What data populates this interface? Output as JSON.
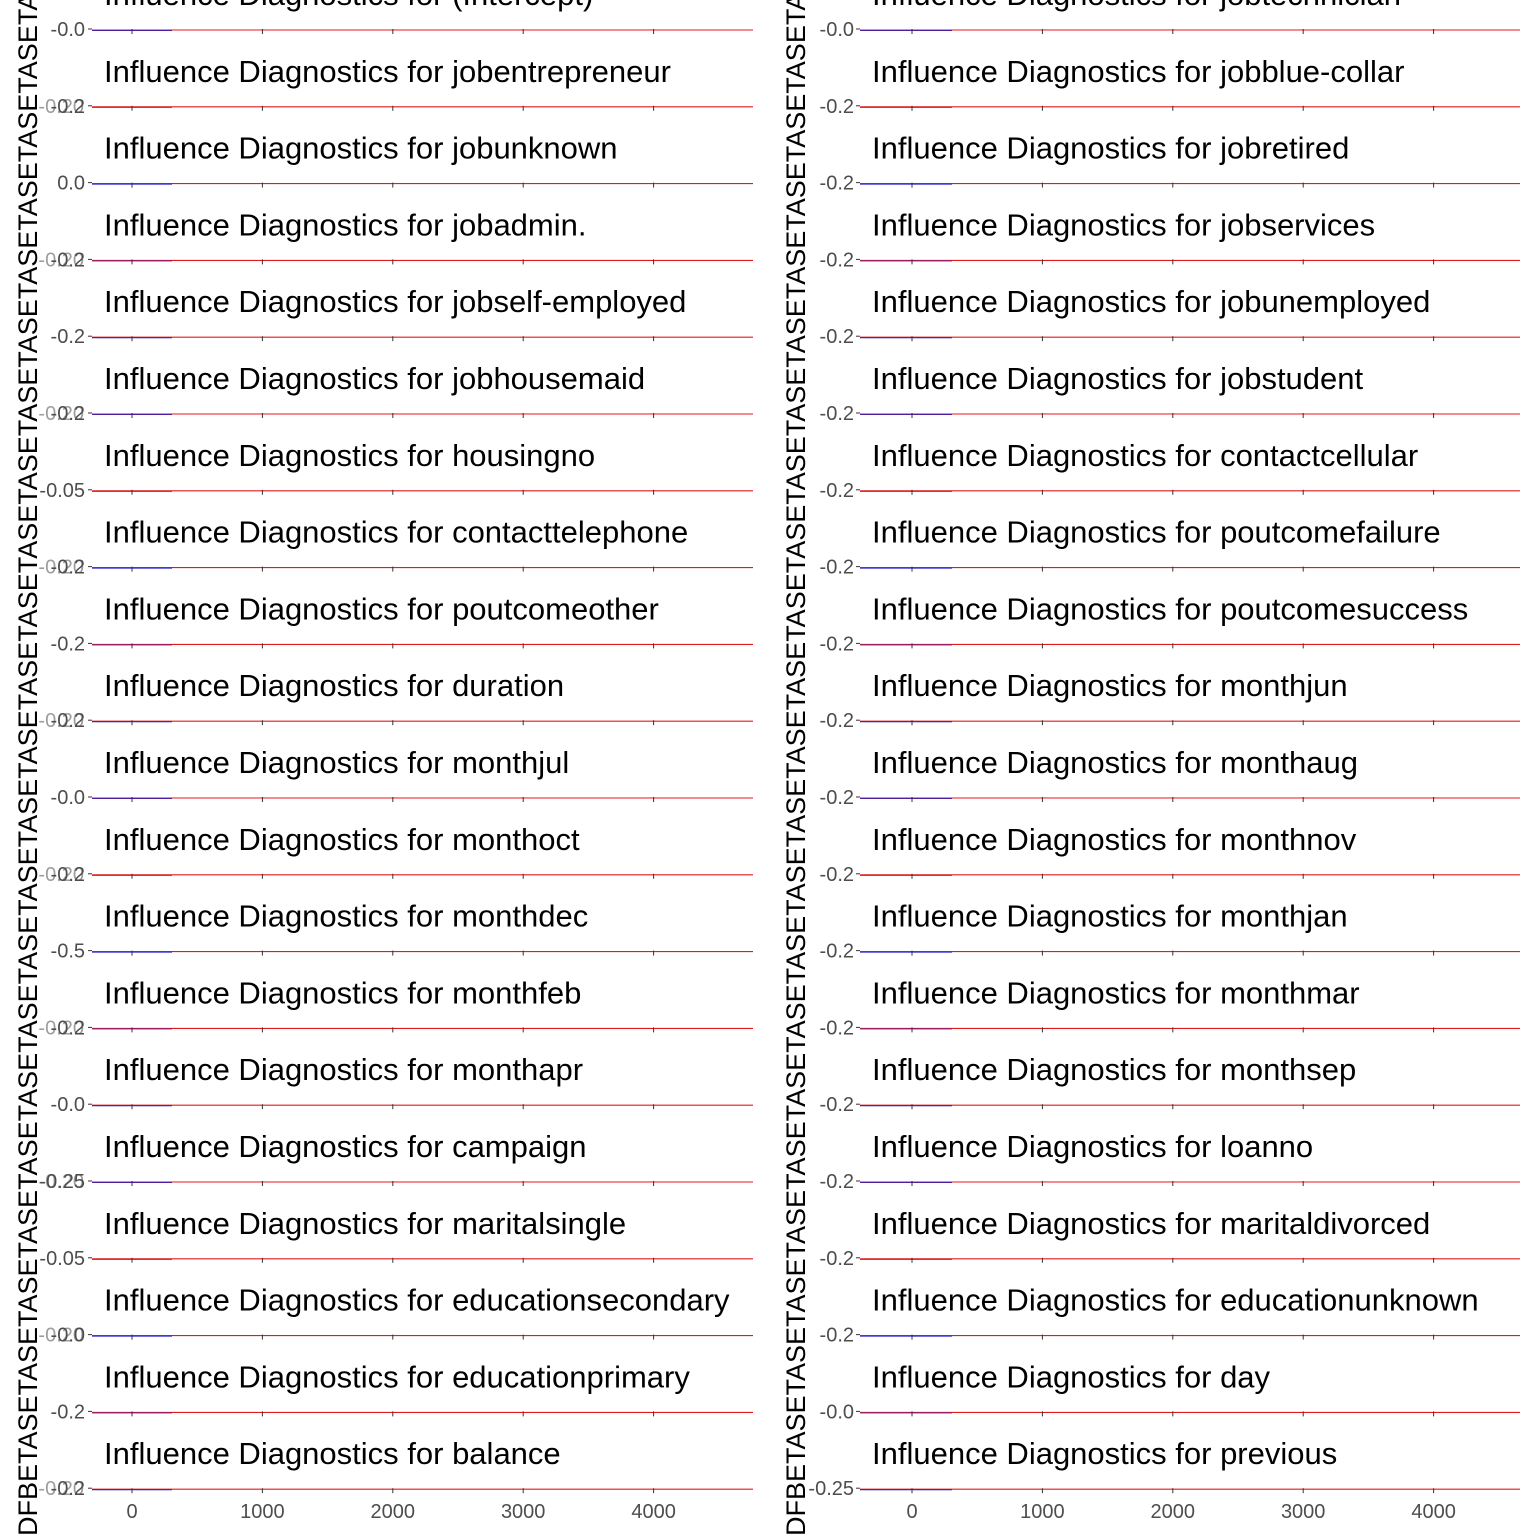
{
  "y_axis_label_text": "DFBETASETASETASETASETASETASETASETASETASETASETASETASETASETASETASETASETASETASETASETASETASETASETASETASETASETASETASETASETASETASETASETASETASETASETASETASETASETASETASETASETASETASETASETASETASETASETASETASETASETASETASETASETASETASETASETASETASETASETAS",
  "colors": {
    "threshold_line": "#e41a1c",
    "dfbeta_line": "#1f1fcc",
    "axis": "#333333",
    "tick_text": "#4d4d4d"
  },
  "chart_data": {
    "type": "line",
    "x_ticks": [
      "0",
      "1000",
      "2000",
      "3000",
      "4000"
    ],
    "xlim": [
      0,
      4700
    ],
    "panels": [
      {
        "column": "left",
        "y_tick_overlay": "-0.20",
        "rows": [
          {
            "title": "Influence Diagnostics for (Intercept)",
            "y_tick": "-0.0"
          },
          {
            "title": "Influence Diagnostics for jobentrepreneur",
            "y_tick": "-0.2"
          },
          {
            "title": "Influence Diagnostics for jobunknown",
            "y_tick": "0.0"
          },
          {
            "title": "Influence Diagnostics for jobadmin.",
            "y_tick": "-0.2"
          },
          {
            "title": "Influence Diagnostics for jobself-employed",
            "y_tick": "-0.2"
          },
          {
            "title": "Influence Diagnostics for jobhousemaid",
            "y_tick": "-0.2"
          },
          {
            "title": "Influence Diagnostics for housingno",
            "y_tick": "-0.05"
          },
          {
            "title": "Influence Diagnostics for contacttelephone",
            "y_tick": "-0.2"
          },
          {
            "title": "Influence Diagnostics for poutcomeother",
            "y_tick": "-0.2"
          },
          {
            "title": "Influence Diagnostics for duration",
            "y_tick": "-0.2"
          },
          {
            "title": "Influence Diagnostics for monthjul",
            "y_tick": "-0.0"
          },
          {
            "title": "Influence Diagnostics for monthoct",
            "y_tick": "-0.2"
          },
          {
            "title": "Influence Diagnostics for monthdec",
            "y_tick": "-0.5"
          },
          {
            "title": "Influence Diagnostics for monthfeb",
            "y_tick": "-0.2"
          },
          {
            "title": "Influence Diagnostics for monthapr",
            "y_tick": "-0.0"
          },
          {
            "title": "Influence Diagnostics for campaign",
            "y_tick": "-0.25"
          },
          {
            "title": "Influence Diagnostics for maritalsingle",
            "y_tick": "-0.05"
          },
          {
            "title": "Influence Diagnostics for educationsecondary",
            "y_tick": "-0.0"
          },
          {
            "title": "Influence Diagnostics for educationprimary",
            "y_tick": "-0.2"
          },
          {
            "title": "Influence Diagnostics for balance",
            "y_tick": "-0.2"
          }
        ]
      },
      {
        "column": "right",
        "rows": [
          {
            "title": "Influence Diagnostics for jobtechnician",
            "y_tick": "-0.0"
          },
          {
            "title": "Influence Diagnostics for jobblue-collar",
            "y_tick": "-0.2"
          },
          {
            "title": "Influence Diagnostics for jobretired",
            "y_tick": "-0.2"
          },
          {
            "title": "Influence Diagnostics for jobservices",
            "y_tick": "-0.2"
          },
          {
            "title": "Influence Diagnostics for jobunemployed",
            "y_tick": "-0.2"
          },
          {
            "title": "Influence Diagnostics for jobstudent",
            "y_tick": "-0.2"
          },
          {
            "title": "Influence Diagnostics for contactcellular",
            "y_tick": "-0.2"
          },
          {
            "title": "Influence Diagnostics for poutcomefailure",
            "y_tick": "-0.2"
          },
          {
            "title": "Influence Diagnostics for poutcomesuccess",
            "y_tick": "-0.2"
          },
          {
            "title": "Influence Diagnostics for monthjun",
            "y_tick": "-0.2"
          },
          {
            "title": "Influence Diagnostics for monthaug",
            "y_tick": "-0.2"
          },
          {
            "title": "Influence Diagnostics for monthnov",
            "y_tick": "-0.2"
          },
          {
            "title": "Influence Diagnostics for monthjan",
            "y_tick": "-0.2"
          },
          {
            "title": "Influence Diagnostics for monthmar",
            "y_tick": "-0.2"
          },
          {
            "title": "Influence Diagnostics for monthsep",
            "y_tick": "-0.2"
          },
          {
            "title": "Influence Diagnostics for loanno",
            "y_tick": "-0.2"
          },
          {
            "title": "Influence Diagnostics for maritaldivorced",
            "y_tick": "-0.2"
          },
          {
            "title": "Influence Diagnostics for educationunknown",
            "y_tick": "-0.2"
          },
          {
            "title": "Influence Diagnostics for day",
            "y_tick": "-0.0"
          },
          {
            "title": "Influence Diagnostics for previous",
            "y_tick": "-0.25"
          }
        ]
      }
    ]
  }
}
